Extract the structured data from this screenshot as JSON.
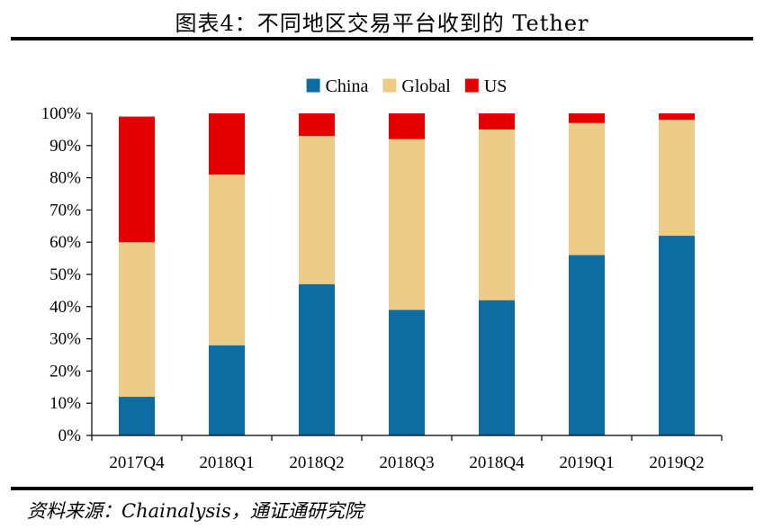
{
  "figure": {
    "title": "图表4：不同地区交易平台收到的 Tether",
    "source": "资料来源：Chainalysis，通证通研究院"
  },
  "chart_data": {
    "type": "bar",
    "stacked": true,
    "categories": [
      "2017Q4",
      "2018Q1",
      "2018Q2",
      "2018Q3",
      "2018Q4",
      "2019Q1",
      "2019Q2"
    ],
    "series": [
      {
        "name": "China",
        "color": "#0E6CA0",
        "values": [
          12,
          28,
          47,
          39,
          42,
          56,
          62
        ]
      },
      {
        "name": "Global",
        "color": "#ECCB87",
        "values": [
          48,
          53,
          46,
          53,
          53,
          41,
          36
        ]
      },
      {
        "name": "US",
        "color": "#E30000",
        "values": [
          39,
          19,
          7,
          8,
          5,
          3,
          2
        ]
      }
    ],
    "yticks": [
      "0%",
      "10%",
      "20%",
      "30%",
      "40%",
      "50%",
      "60%",
      "70%",
      "80%",
      "90%",
      "100%"
    ],
    "ylim": [
      0,
      100
    ],
    "legend_position": "top-center",
    "grid": false
  }
}
